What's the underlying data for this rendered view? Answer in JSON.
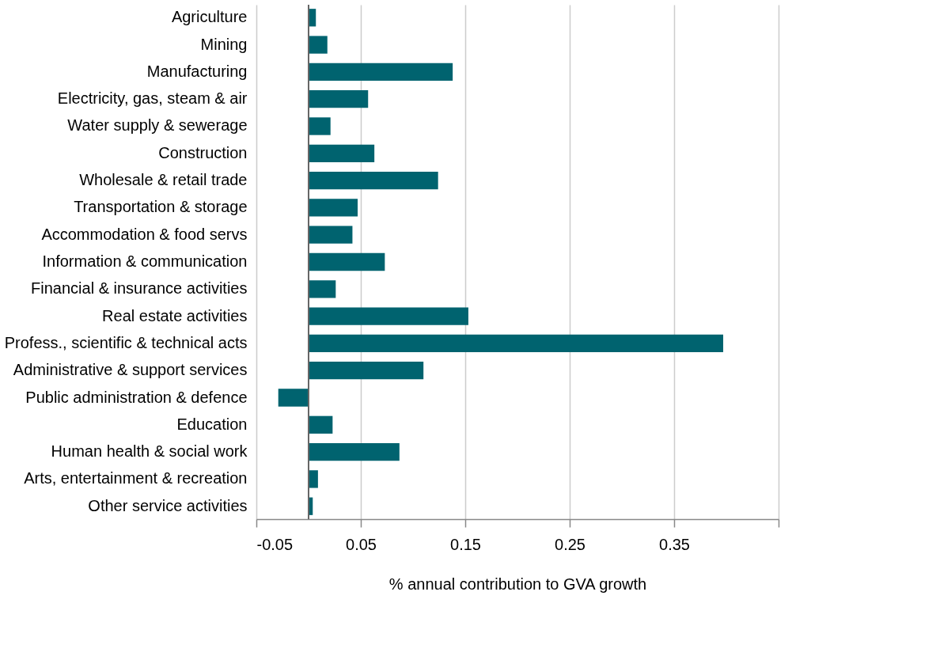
{
  "chart_data": {
    "type": "bar",
    "orientation": "horizontal",
    "xlabel": "% annual contribution to GVA growth",
    "categories": [
      "Agriculture",
      "Mining",
      "Manufacturing",
      "Electricity, gas, steam & air",
      "Water supply & sewerage",
      "Construction",
      "Wholesale & retail trade",
      "Transportation & storage",
      "Accommodation & food servs",
      "Information & communication",
      "Financial & insurance activities",
      "Real estate activities",
      "Profess., scientific & technical acts",
      "Administrative & support services",
      "Public administration & defence",
      "Education",
      "Human health & social work",
      "Arts, entertainment & recreation",
      "Other service activities"
    ],
    "series": [
      {
        "color": "#00636f",
        "values": [
          0.007,
          0.018,
          0.138,
          0.057,
          0.021,
          0.063,
          0.124,
          0.047,
          0.042,
          0.073,
          0.026,
          0.153,
          0.397,
          0.11,
          -0.029,
          0.023,
          0.087,
          0.009,
          0.004
        ]
      }
    ],
    "xlim": [
      -0.05,
      0.45
    ],
    "xticks": [
      -0.05,
      0.05,
      0.15,
      0.25,
      0.35,
      {
        "value": 0.45,
        "label": null
      }
    ],
    "grid": "x"
  }
}
